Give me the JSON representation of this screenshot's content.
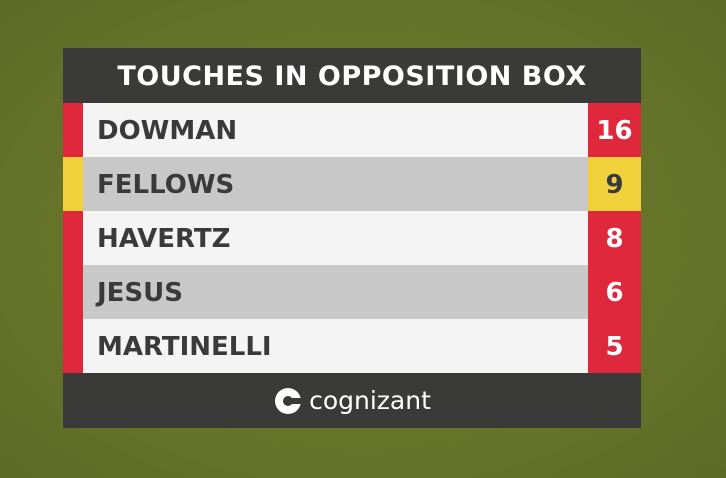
{
  "header": {
    "title": "TOUCHES IN OPPOSITION BOX"
  },
  "table": {
    "rows": [
      {
        "name": "DOWMAN",
        "value": 16,
        "color": "#e0283c"
      },
      {
        "name": "FELLOWS",
        "value": 9,
        "color": "#f2d23c"
      },
      {
        "name": "HAVERTZ",
        "value": 8,
        "color": "#e0283c"
      },
      {
        "name": "JESUS",
        "value": 6,
        "color": "#e0283c"
      },
      {
        "name": "MARTINELLI",
        "value": 5,
        "color": "#e0283c"
      }
    ]
  },
  "footer": {
    "sponsor": "cognizant"
  }
}
